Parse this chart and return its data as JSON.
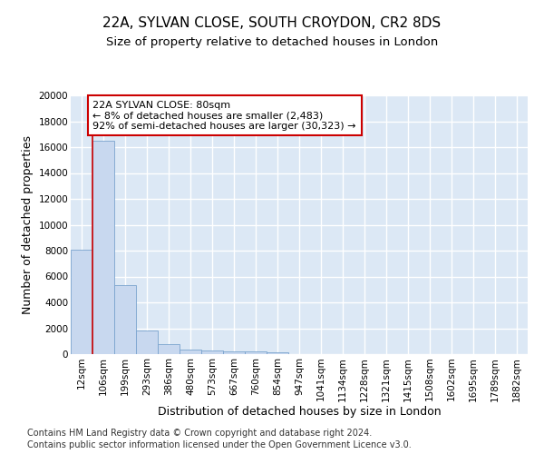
{
  "title": "22A, SYLVAN CLOSE, SOUTH CROYDON, CR2 8DS",
  "subtitle": "Size of property relative to detached houses in London",
  "xlabel": "Distribution of detached houses by size in London",
  "ylabel": "Number of detached properties",
  "categories": [
    "12sqm",
    "106sqm",
    "199sqm",
    "293sqm",
    "386sqm",
    "480sqm",
    "573sqm",
    "667sqm",
    "760sqm",
    "854sqm",
    "947sqm",
    "1041sqm",
    "1134sqm",
    "1228sqm",
    "1321sqm",
    "1415sqm",
    "1508sqm",
    "1602sqm",
    "1695sqm",
    "1789sqm",
    "1882sqm"
  ],
  "values": [
    8100,
    16500,
    5300,
    1850,
    750,
    350,
    270,
    210,
    180,
    150,
    0,
    0,
    0,
    0,
    0,
    0,
    0,
    0,
    0,
    0,
    0
  ],
  "bar_color": "#c8d8ef",
  "bar_edge_color": "#7aa4ce",
  "highlight_line_color": "#cc0000",
  "annotation_text": "22A SYLVAN CLOSE: 80sqm\n← 8% of detached houses are smaller (2,483)\n92% of semi-detached houses are larger (30,323) →",
  "annotation_box_color": "#ffffff",
  "annotation_box_edge_color": "#cc0000",
  "footer_line1": "Contains HM Land Registry data © Crown copyright and database right 2024.",
  "footer_line2": "Contains public sector information licensed under the Open Government Licence v3.0.",
  "figure_bg_color": "#ffffff",
  "plot_bg_color": "#dce8f5",
  "ylim": [
    0,
    20000
  ],
  "yticks": [
    0,
    2000,
    4000,
    6000,
    8000,
    10000,
    12000,
    14000,
    16000,
    18000,
    20000
  ],
  "title_fontsize": 11,
  "subtitle_fontsize": 9.5,
  "axis_label_fontsize": 9,
  "tick_fontsize": 7.5,
  "footer_fontsize": 7,
  "annotation_fontsize": 8
}
